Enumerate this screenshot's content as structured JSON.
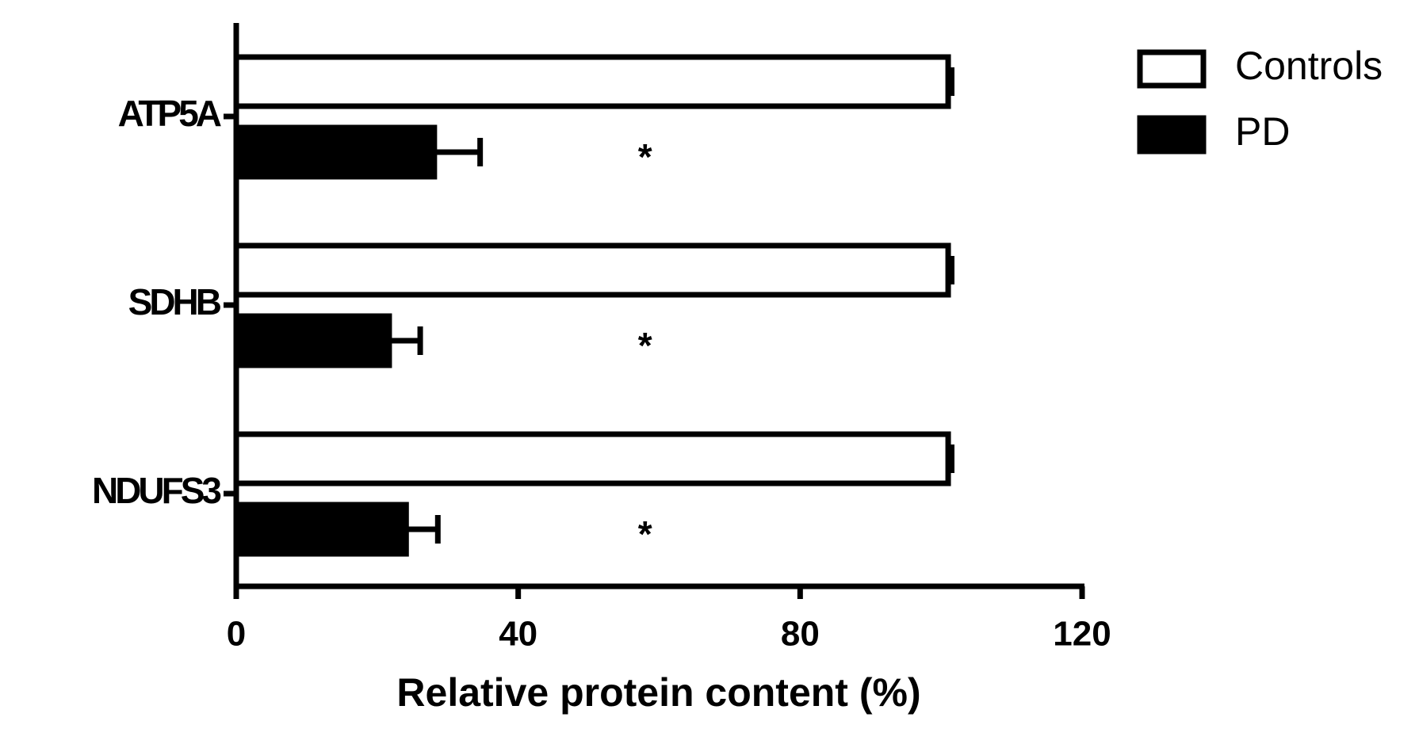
{
  "chart_data": {
    "type": "hbar",
    "categories": [
      "ATP5A",
      "SDHB",
      "NDUFS3"
    ],
    "series": [
      {
        "name": "Controls",
        "color": "#ffffff",
        "values": [
          101,
          101,
          101
        ],
        "errors": [
          0.5,
          0.5,
          0.5
        ]
      },
      {
        "name": "PD",
        "color": "#000000",
        "values": [
          28.1,
          21.7,
          24.1
        ],
        "errors": [
          6.5,
          4.4,
          4.5
        ]
      }
    ],
    "annotations": [
      {
        "text": "*",
        "x": 58
      },
      {
        "text": "*",
        "x": 58
      },
      {
        "text": "*",
        "x": 58
      }
    ],
    "xlabel": "Relative protein content (%)",
    "xlim": [
      0,
      120
    ],
    "xticks": [
      0,
      40,
      80,
      120
    ],
    "legend": "upper right"
  }
}
